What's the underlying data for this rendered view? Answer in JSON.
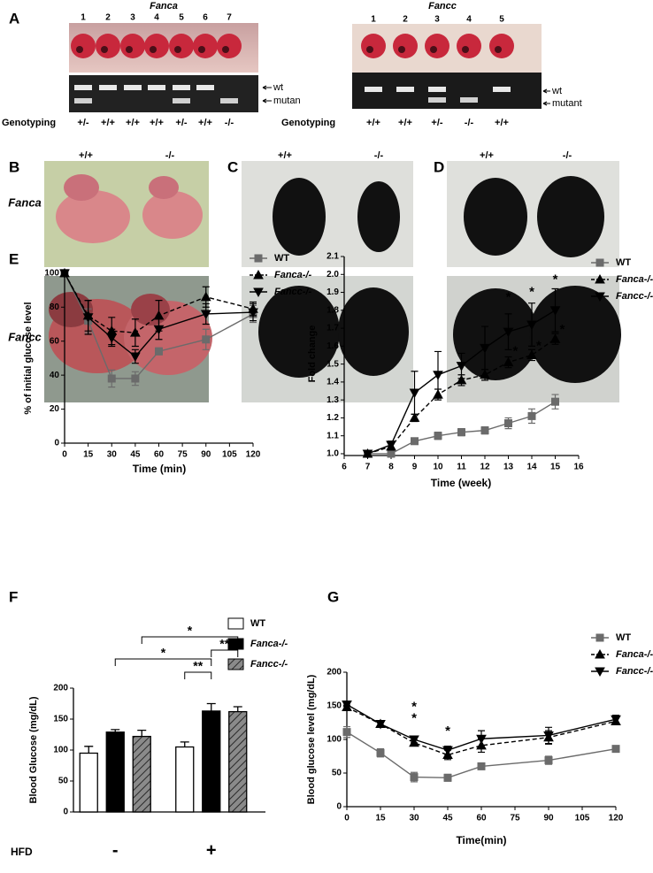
{
  "panels": [
    "A",
    "B",
    "C",
    "D",
    "E",
    "F",
    "G"
  ],
  "panel_a": {
    "fanca": {
      "title": "Fanca",
      "lanes": [
        1,
        2,
        3,
        4,
        5,
        6,
        7
      ],
      "band_labels": [
        "wt",
        "mutan"
      ],
      "genotyping_label": "Genotyping",
      "genotypes": [
        "+/-",
        "+/+",
        "+/+",
        "+/+",
        "+/-",
        "+/+",
        "-/-"
      ]
    },
    "fancc": {
      "title": "Fancc",
      "lanes": [
        1,
        2,
        3,
        4,
        5
      ],
      "band_labels": [
        "wt",
        "mutant"
      ],
      "genotyping_label": "Genotyping",
      "genotypes": [
        "+/+",
        "+/+",
        "+/-",
        "-/-",
        "+/+"
      ]
    }
  },
  "panel_b": {
    "columns": [
      "+/+",
      "-/-"
    ],
    "rows": [
      "Fanca",
      "Fancc"
    ]
  },
  "panel_c": {
    "columns": [
      "+/+",
      "-/-"
    ]
  },
  "panel_d": {
    "columns": [
      "+/+",
      "-/-"
    ]
  },
  "chart_data": [
    {
      "type": "line",
      "xlabel": "Time (min)",
      "ylabel": "% of initial glucose level",
      "x": [
        0,
        15,
        30,
        45,
        60,
        90,
        120
      ],
      "xlim": [
        0,
        120
      ],
      "xticks": [
        0,
        15,
        30,
        45,
        60,
        75,
        90,
        105,
        120
      ],
      "ylim": [
        0,
        102
      ],
      "yticks": [
        0,
        20,
        40,
        60,
        80,
        100
      ],
      "series": [
        {
          "name": "WT",
          "color": "#6b6b6b",
          "marker": "square",
          "line_style": "solid",
          "values": [
            100,
            72,
            38,
            38,
            54,
            61,
            76
          ],
          "errors": [
            0,
            7,
            5,
            4,
            2,
            6,
            5
          ]
        },
        {
          "name": "Fanca-/-",
          "color": "#000000",
          "marker": "triangle-up",
          "line_style": "dashed",
          "values": [
            100,
            75,
            66,
            65,
            75,
            86,
            79
          ],
          "errors": [
            0,
            9,
            8,
            8,
            9,
            6,
            4
          ]
        },
        {
          "name": "Fancc-/-",
          "color": "#000000",
          "marker": "triangle-down",
          "line_style": "solid",
          "values": [
            100,
            74,
            62,
            51,
            67,
            76,
            77
          ],
          "errors": [
            0,
            10,
            5,
            4,
            6,
            6,
            5
          ]
        }
      ]
    },
    {
      "type": "line",
      "xlabel": "Time (week)",
      "ylabel": "Fold change",
      "x": [
        7,
        8,
        9,
        10,
        11,
        12,
        13,
        14,
        15
      ],
      "xlim": [
        6,
        16
      ],
      "xticks": [
        6,
        7,
        8,
        9,
        10,
        11,
        12,
        13,
        14,
        15,
        16
      ],
      "ylim": [
        0.99,
        2.1
      ],
      "yticks": [
        {
          "value": 1,
          "label": "1.0"
        },
        1.1,
        1.2,
        1.3,
        1.4,
        1.5,
        1.6,
        1.7,
        1.8,
        1.9,
        {
          "value": 2,
          "label": "2.0"
        },
        2.1
      ],
      "series": [
        {
          "name": "WT",
          "color": "#6b6b6b",
          "marker": "square",
          "line_style": "solid",
          "values": [
            1.0,
            1.0,
            1.07,
            1.1,
            1.12,
            1.13,
            1.17,
            1.21,
            1.29
          ],
          "errors": [
            0.01,
            0.01,
            0.01,
            0.02,
            0.02,
            0.02,
            0.03,
            0.04,
            0.04
          ]
        },
        {
          "name": "Fanca-/-",
          "color": "#000000",
          "marker": "triangle-up",
          "line_style": "dashed",
          "values": [
            1.0,
            1.04,
            1.2,
            1.33,
            1.41,
            1.44,
            1.51,
            1.55,
            1.64
          ],
          "errors": [
            0.01,
            0.02,
            0.02,
            0.03,
            0.03,
            0.03,
            0.03,
            0.03,
            0.03
          ]
        },
        {
          "name": "Fancc-/-",
          "color": "#000000",
          "marker": "triangle-down",
          "line_style": "solid",
          "values": [
            1.0,
            1.05,
            1.34,
            1.44,
            1.49,
            1.59,
            1.68,
            1.72,
            1.8
          ],
          "errors": [
            0.01,
            0.02,
            0.12,
            0.13,
            0.07,
            0.12,
            0.1,
            0.12,
            0.12
          ]
        }
      ],
      "annotations": [
        {
          "text": "*",
          "x": 13,
          "y": 1.87
        },
        {
          "text": "*",
          "x": 13.3,
          "y": 1.57
        },
        {
          "text": "*",
          "x": 14,
          "y": 1.9
        },
        {
          "text": "*",
          "x": 14.3,
          "y": 1.6
        },
        {
          "text": "*",
          "x": 15,
          "y": 1.97
        },
        {
          "text": "*",
          "x": 15.3,
          "y": 1.69
        }
      ]
    },
    {
      "type": "bar",
      "ylabel": "Blood Glucose (mg/dL)",
      "xlabel": "HFD",
      "categories": [
        "-",
        "+"
      ],
      "ylim": [
        0,
        200
      ],
      "yticks": [
        0,
        50,
        100,
        150,
        200
      ],
      "series": [
        {
          "name": "WT",
          "color": "#ffffff",
          "values": [
            95,
            105
          ],
          "errors": [
            11,
            8
          ]
        },
        {
          "name": "Fanca-/-",
          "color": "#000000",
          "values": [
            129,
            163
          ],
          "errors": [
            4,
            12
          ]
        },
        {
          "name": "Fancc-/-",
          "color": "#808080",
          "pattern": "hatch",
          "values": [
            122,
            162
          ],
          "errors": [
            10,
            8
          ]
        }
      ],
      "annotations": [
        "*",
        "**",
        "*",
        "**"
      ]
    },
    {
      "type": "line",
      "xlabel": "Time(min)",
      "ylabel": "Blood glucose level (mg/dL)",
      "x": [
        0,
        15,
        30,
        45,
        60,
        90,
        120
      ],
      "xlim": [
        0,
        120
      ],
      "xticks": [
        0,
        15,
        30,
        45,
        60,
        75,
        90,
        105,
        120
      ],
      "ylim": [
        0,
        200
      ],
      "yticks": [
        0,
        50,
        100,
        150,
        200
      ],
      "series": [
        {
          "name": "WT",
          "color": "#6b6b6b",
          "marker": "square",
          "line_style": "solid",
          "values": [
            111,
            80,
            44,
            43,
            60,
            69,
            86
          ],
          "errors": [
            8,
            6,
            7,
            5,
            3,
            6,
            4
          ]
        },
        {
          "name": "Fanca-/-",
          "color": "#000000",
          "marker": "triangle-up",
          "line_style": "dashed",
          "values": [
            148,
            123,
            95,
            77,
            91,
            103,
            127
          ],
          "errors": [
            3,
            3,
            4,
            7,
            10,
            10,
            5
          ]
        },
        {
          "name": "Fancc-/-",
          "color": "#000000",
          "marker": "triangle-down",
          "line_style": "solid",
          "values": [
            152,
            123,
            100,
            84,
            101,
            106,
            130
          ],
          "errors": [
            3,
            3,
            5,
            6,
            12,
            12,
            6
          ]
        }
      ],
      "annotations": [
        {
          "text": "*",
          "x": 30,
          "y": 148
        },
        {
          "text": "*",
          "x": 30,
          "y": 131
        },
        {
          "text": "*",
          "x": 45,
          "y": 112
        }
      ]
    }
  ]
}
